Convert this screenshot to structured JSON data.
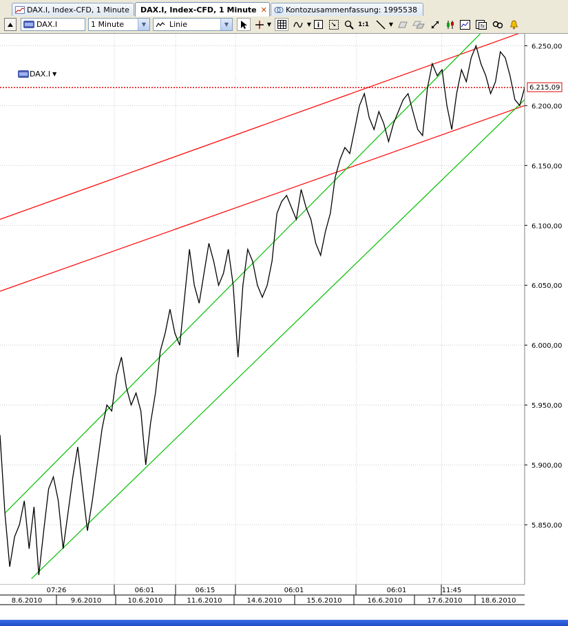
{
  "tabs": [
    {
      "label": "DAX.I, Index-CFD, 1 Minute",
      "active": false
    },
    {
      "label": "DAX.I, Index-CFD, 1 Minute",
      "active": true,
      "close": "✕"
    },
    {
      "label": "Kontozusammenfassung: 1995538",
      "active": false
    }
  ],
  "toolbar": {
    "symbol_value": "DAX.I",
    "interval_value": "1 Minute",
    "chart_type_value": "Linie",
    "ratio_label": "1:1"
  },
  "chart_header": {
    "symbol": "DAX.I"
  },
  "chart_data": {
    "type": "line",
    "y_axis": {
      "min": 5800,
      "max": 6260,
      "ticks": [
        5850,
        5900,
        5950,
        6000,
        6050,
        6100,
        6150,
        6200,
        6250
      ],
      "tick_labels": [
        "5.850,00",
        "5.900,00",
        "5.950,00",
        "6.000,00",
        "6.050,00",
        "6.100,00",
        "6.150,00",
        "6.200,00",
        "6.250,00"
      ]
    },
    "current_price": {
      "value": 6215.09,
      "label": "6.215,09"
    },
    "time_labels": [
      "07:26",
      "06:01",
      "06:15",
      "06:01",
      "06:01",
      "11:45"
    ],
    "date_labels": [
      "8.6.2010",
      "9.6.2010",
      "10.6.2010",
      "11.6.2010",
      "14.6.2010",
      "15.6.2010",
      "16.6.2010",
      "17.6.2010",
      "18.6.2010"
    ],
    "series": [
      {
        "color": "#000000",
        "values": [
          5925,
          5860,
          5815,
          5840,
          5850,
          5870,
          5830,
          5865,
          5808,
          5845,
          5880,
          5890,
          5870,
          5830,
          5860,
          5890,
          5915,
          5880,
          5845,
          5870,
          5900,
          5930,
          5950,
          5945,
          5975,
          5990,
          5965,
          5950,
          5960,
          5945,
          5900,
          5935,
          5960,
          5995,
          6010,
          6030,
          6010,
          6000,
          6040,
          6080,
          6050,
          6035,
          6060,
          6085,
          6070,
          6050,
          6060,
          6080,
          6050,
          5990,
          6050,
          6080,
          6070,
          6050,
          6040,
          6050,
          6070,
          6110,
          6120,
          6125,
          6115,
          6105,
          6130,
          6115,
          6105,
          6085,
          6075,
          6095,
          6110,
          6140,
          6155,
          6165,
          6160,
          6180,
          6200,
          6210,
          6190,
          6180,
          6195,
          6185,
          6170,
          6185,
          6195,
          6205,
          6210,
          6195,
          6180,
          6175,
          6215,
          6235,
          6225,
          6230,
          6200,
          6180,
          6210,
          6230,
          6220,
          6240,
          6250,
          6235,
          6225,
          6210,
          6220,
          6245,
          6240,
          6225,
          6205,
          6200,
          6215
        ]
      }
    ],
    "channels": [
      {
        "color": "#ff0000",
        "lines": [
          {
            "x": [
              0,
              1
            ],
            "y": [
              6105,
              6262
            ]
          },
          {
            "x": [
              0,
              1
            ],
            "y": [
              6045,
              6200
            ]
          }
        ]
      },
      {
        "color": "#00c000",
        "lines": [
          {
            "x": [
              0.01,
              0.92
            ],
            "y": [
              5860,
              6262
            ]
          },
          {
            "x": [
              0.06,
              1.0
            ],
            "y": [
              5805,
              6205
            ]
          }
        ]
      }
    ]
  }
}
